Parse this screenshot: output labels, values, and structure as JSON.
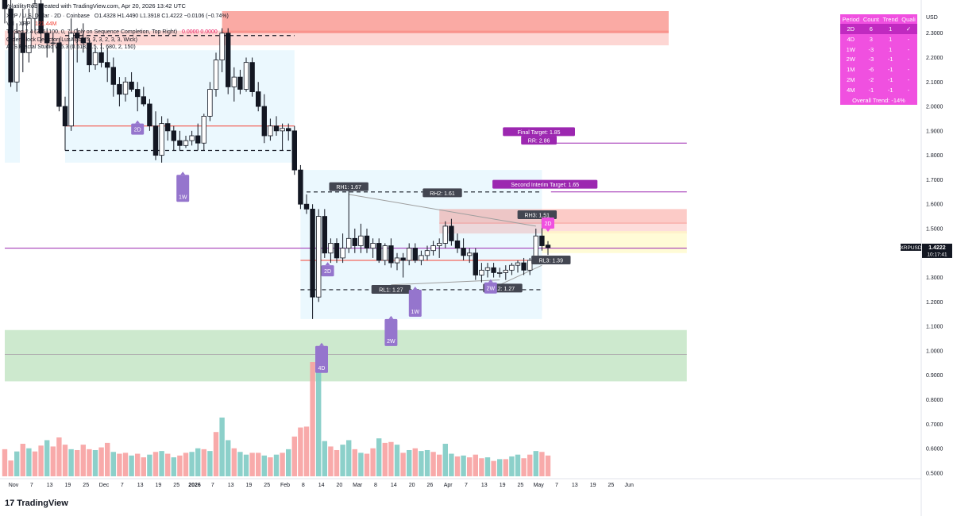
{
  "header": {
    "credit": "VolatilityRob created with TradingView.com, Apr 20, 2026 13:42 UTC"
  },
  "legend": {
    "symbol_line": "XRP / U.S. Dollar · 2D · Coinbase",
    "ohlc": "O1.4328  H1.4490  L1.3918  C1.4222  −0.0106 (−0.74%)",
    "vol_label": "Vol · XRP",
    "vol_value": "121.44M",
    "td_label": "TDSeq 2.4 (2, 6, 100, 0, 7, Only on Sequence Completion, Top Right)",
    "td_values": "0.0000  0.0000",
    "ob_label": "Order Block Detector [LuxAlgo] (5, 3, 3, 2, 3, 3, Wick)",
    "aes_label": "AES Fractal Studio v15.3 (0.618, 0.5, 1, 680, 2, 150)"
  },
  "stats_table": {
    "headers": [
      "Period",
      "Count",
      "Trend",
      "Quali"
    ],
    "rows": [
      [
        "2D",
        "6",
        "1",
        "✓"
      ],
      [
        "4D",
        "3",
        "1",
        "-"
      ],
      [
        "1W",
        "-3",
        "1",
        "-"
      ],
      [
        "2W",
        "-3",
        "-1",
        "-"
      ],
      [
        "1M",
        "-6",
        "-1",
        "-"
      ],
      [
        "2M",
        "-2",
        "-1",
        "-"
      ],
      [
        "4M",
        "-1",
        "-1",
        "-"
      ]
    ],
    "overall": "Overall Trend: -14%"
  },
  "branding": {
    "logo_text": "TradingView",
    "logo_mark": "17"
  },
  "colors": {
    "up": "#ffffff",
    "down": "#131722",
    "vol_up": "#80cbc4",
    "vol_down": "#f7a1a1",
    "resistance": "#f44336",
    "support": "#4caf50",
    "label_purple": "#9c27b0",
    "tag_purple": "#9575cd",
    "pink": "#f050e0"
  },
  "chart_data": {
    "type": "candlestick",
    "symbol": "XRPUSD",
    "price_axis": {
      "label": "USD",
      "min": 0.48,
      "max": 2.39,
      "ticks": [
        2.3,
        2.2,
        2.1,
        2.0,
        1.9,
        1.8,
        1.7,
        1.6,
        1.5,
        1.4,
        1.3,
        1.2,
        1.1,
        1.0,
        0.9,
        0.8,
        0.7,
        0.6,
        0.5
      ]
    },
    "time_axis": {
      "labels": [
        "Nov",
        "7",
        "13",
        "19",
        "25",
        "Dec",
        "7",
        "13",
        "19",
        "25",
        "2026",
        "7",
        "13",
        "19",
        "25",
        "Feb",
        "8",
        "14",
        "20",
        "Mar",
        "8",
        "14",
        "20",
        "26",
        "Apr",
        "7",
        "13",
        "19",
        "25",
        "May",
        "7",
        "13",
        "19",
        "25",
        "Jun"
      ],
      "slots": [
        0,
        3,
        6,
        9,
        12,
        15,
        18,
        21,
        24,
        27,
        30,
        33,
        36,
        39,
        42,
        45,
        48,
        51,
        54,
        57,
        60,
        63,
        66,
        69,
        72,
        75,
        78,
        81,
        84,
        87,
        90,
        93,
        96,
        99,
        102
      ]
    },
    "candles": [
      [
        2.45,
        2.52,
        2.34,
        2.4
      ],
      [
        2.4,
        2.45,
        2.08,
        2.1
      ],
      [
        2.1,
        2.34,
        2.06,
        2.3
      ],
      [
        2.3,
        2.4,
        2.14,
        2.22
      ],
      [
        2.22,
        2.4,
        2.18,
        2.36
      ],
      [
        2.36,
        2.44,
        2.3,
        2.42
      ],
      [
        2.42,
        2.46,
        2.26,
        2.3
      ],
      [
        2.3,
        2.32,
        2.2,
        2.26
      ],
      [
        2.26,
        2.3,
        2.22,
        2.26
      ],
      [
        2.26,
        2.28,
        1.98,
        2.0
      ],
      [
        2.0,
        2.04,
        1.82,
        1.92
      ],
      [
        1.92,
        2.36,
        1.9,
        2.3
      ],
      [
        2.3,
        2.32,
        2.18,
        2.28
      ],
      [
        2.28,
        2.34,
        2.22,
        2.26
      ],
      [
        2.26,
        2.28,
        2.14,
        2.17
      ],
      [
        2.17,
        2.24,
        2.15,
        2.22
      ],
      [
        2.22,
        2.26,
        2.16,
        2.18
      ],
      [
        2.18,
        2.24,
        2.1,
        2.16
      ],
      [
        2.16,
        2.2,
        2.04,
        2.09
      ],
      [
        2.09,
        2.12,
        2.0,
        2.05
      ],
      [
        2.05,
        2.12,
        2.02,
        2.1
      ],
      [
        2.1,
        2.14,
        2.06,
        2.07
      ],
      [
        2.07,
        2.1,
        1.98,
        2.04
      ],
      [
        2.04,
        2.08,
        2.0,
        2.01
      ],
      [
        2.01,
        2.03,
        1.9,
        1.92
      ],
      [
        1.92,
        1.98,
        1.78,
        1.8
      ],
      [
        1.8,
        1.96,
        1.77,
        1.93
      ],
      [
        1.93,
        1.95,
        1.86,
        1.9
      ],
      [
        1.9,
        1.92,
        1.82,
        1.86
      ],
      [
        1.86,
        1.9,
        1.82,
        1.84
      ],
      [
        1.84,
        1.88,
        1.83,
        1.86
      ],
      [
        1.86,
        1.9,
        1.84,
        1.88
      ],
      [
        1.88,
        1.93,
        1.82,
        1.85
      ],
      [
        1.85,
        1.97,
        1.82,
        1.96
      ],
      [
        1.96,
        2.1,
        1.94,
        2.07
      ],
      [
        2.07,
        2.22,
        2.04,
        2.19
      ],
      [
        2.19,
        2.32,
        2.14,
        2.3
      ],
      [
        2.3,
        2.32,
        2.05,
        2.08
      ],
      [
        2.08,
        2.16,
        2.02,
        2.12
      ],
      [
        2.12,
        2.15,
        2.05,
        2.07
      ],
      [
        2.07,
        2.2,
        2.06,
        2.18
      ],
      [
        2.18,
        2.2,
        2.04,
        2.06
      ],
      [
        2.06,
        2.1,
        1.98,
        2.0
      ],
      [
        2.0,
        2.05,
        1.85,
        1.88
      ],
      [
        1.88,
        1.95,
        1.86,
        1.92
      ],
      [
        1.92,
        1.96,
        1.88,
        1.9
      ],
      [
        1.9,
        1.93,
        1.82,
        1.91
      ],
      [
        1.91,
        1.93,
        1.86,
        1.9
      ],
      [
        1.9,
        1.92,
        1.72,
        1.74
      ],
      [
        1.74,
        1.76,
        1.58,
        1.6
      ],
      [
        1.6,
        1.64,
        1.56,
        1.58
      ],
      [
        1.58,
        1.6,
        1.13,
        1.22
      ],
      [
        1.22,
        1.58,
        1.2,
        1.55
      ],
      [
        1.55,
        1.58,
        1.38,
        1.4
      ],
      [
        1.4,
        1.46,
        1.36,
        1.44
      ],
      [
        1.44,
        1.46,
        1.36,
        1.38
      ],
      [
        1.38,
        1.48,
        1.36,
        1.42
      ],
      [
        1.42,
        1.67,
        1.4,
        1.46
      ],
      [
        1.46,
        1.5,
        1.4,
        1.43
      ],
      [
        1.43,
        1.52,
        1.4,
        1.47
      ],
      [
        1.47,
        1.5,
        1.4,
        1.42
      ],
      [
        1.42,
        1.46,
        1.38,
        1.44
      ],
      [
        1.44,
        1.46,
        1.36,
        1.37
      ],
      [
        1.37,
        1.44,
        1.35,
        1.43
      ],
      [
        1.43,
        1.46,
        1.34,
        1.36
      ],
      [
        1.36,
        1.4,
        1.33,
        1.38
      ],
      [
        1.38,
        1.4,
        1.3,
        1.37
      ],
      [
        1.37,
        1.44,
        1.35,
        1.42
      ],
      [
        1.42,
        1.44,
        1.36,
        1.37
      ],
      [
        1.37,
        1.41,
        1.35,
        1.39
      ],
      [
        1.39,
        1.43,
        1.37,
        1.41
      ],
      [
        1.41,
        1.45,
        1.39,
        1.43
      ],
      [
        1.43,
        1.46,
        1.38,
        1.44
      ],
      [
        1.44,
        1.53,
        1.42,
        1.51
      ],
      [
        1.51,
        1.54,
        1.43,
        1.45
      ],
      [
        1.45,
        1.48,
        1.4,
        1.42
      ],
      [
        1.42,
        1.46,
        1.37,
        1.39
      ],
      [
        1.39,
        1.42,
        1.36,
        1.4
      ],
      [
        1.4,
        1.42,
        1.29,
        1.31
      ],
      [
        1.31,
        1.36,
        1.28,
        1.33
      ],
      [
        1.33,
        1.36,
        1.3,
        1.34
      ],
      [
        1.34,
        1.36,
        1.3,
        1.32
      ],
      [
        1.32,
        1.34,
        1.3,
        1.32
      ],
      [
        1.32,
        1.35,
        1.29,
        1.33
      ],
      [
        1.33,
        1.36,
        1.31,
        1.35
      ],
      [
        1.35,
        1.37,
        1.32,
        1.36
      ],
      [
        1.36,
        1.38,
        1.31,
        1.33
      ],
      [
        1.33,
        1.38,
        1.31,
        1.37
      ],
      [
        1.37,
        1.5,
        1.36,
        1.47
      ],
      [
        1.47,
        1.55,
        1.41,
        1.43
      ],
      [
        1.4328,
        1.449,
        1.3918,
        1.4222
      ]
    ],
    "volume": [
      [
        "d",
        0.6
      ],
      [
        "d",
        0.35
      ],
      [
        "u",
        0.55
      ],
      [
        "d",
        0.72
      ],
      [
        "u",
        0.62
      ],
      [
        "d",
        0.55
      ],
      [
        "d",
        0.68
      ],
      [
        "u",
        0.8
      ],
      [
        "d",
        0.66
      ],
      [
        "d",
        0.86
      ],
      [
        "d",
        0.7
      ],
      [
        "u",
        0.6
      ],
      [
        "d",
        0.58
      ],
      [
        "d",
        0.7
      ],
      [
        "d",
        0.6
      ],
      [
        "u",
        0.58
      ],
      [
        "d",
        0.64
      ],
      [
        "d",
        0.74
      ],
      [
        "u",
        0.54
      ],
      [
        "d",
        0.5
      ],
      [
        "d",
        0.52
      ],
      [
        "u",
        0.46
      ],
      [
        "d",
        0.5
      ],
      [
        "d",
        0.42
      ],
      [
        "u",
        0.48
      ],
      [
        "d",
        0.54
      ],
      [
        "u",
        0.56
      ],
      [
        "d",
        0.5
      ],
      [
        "u",
        0.42
      ],
      [
        "d",
        0.46
      ],
      [
        "d",
        0.52
      ],
      [
        "u",
        0.54
      ],
      [
        "u",
        0.62
      ],
      [
        "d",
        0.6
      ],
      [
        "u",
        0.56
      ],
      [
        "d",
        0.98
      ],
      [
        "u",
        1.3
      ],
      [
        "u",
        0.8
      ],
      [
        "d",
        0.62
      ],
      [
        "u",
        0.54
      ],
      [
        "u",
        0.48
      ],
      [
        "d",
        0.52
      ],
      [
        "d",
        0.52
      ],
      [
        "u",
        0.46
      ],
      [
        "d",
        0.42
      ],
      [
        "u",
        0.48
      ],
      [
        "d",
        0.52
      ],
      [
        "u",
        0.6
      ],
      [
        "d",
        0.88
      ],
      [
        "d",
        1.08
      ],
      [
        "d",
        1.1
      ],
      [
        "d",
        2.53
      ],
      [
        "u",
        2.47
      ],
      [
        "u",
        0.78
      ],
      [
        "d",
        0.66
      ],
      [
        "d",
        0.58
      ],
      [
        "u",
        0.7
      ],
      [
        "u",
        0.8
      ],
      [
        "d",
        0.6
      ],
      [
        "u",
        0.52
      ],
      [
        "d",
        0.5
      ],
      [
        "d",
        0.62
      ],
      [
        "u",
        0.84
      ],
      [
        "d",
        0.74
      ],
      [
        "d",
        0.76
      ],
      [
        "u",
        0.7
      ],
      [
        "d",
        0.52
      ],
      [
        "u",
        0.58
      ],
      [
        "d",
        0.62
      ],
      [
        "u",
        0.56
      ],
      [
        "u",
        0.58
      ],
      [
        "d",
        0.54
      ],
      [
        "d",
        0.48
      ],
      [
        "u",
        0.72
      ],
      [
        "u",
        0.5
      ],
      [
        "d",
        0.44
      ],
      [
        "u",
        0.46
      ],
      [
        "d",
        0.42
      ],
      [
        "d",
        0.48
      ],
      [
        "d",
        0.4
      ],
      [
        "u",
        0.42
      ],
      [
        "d",
        0.34
      ],
      [
        "u",
        0.38
      ],
      [
        "d",
        0.38
      ],
      [
        "u",
        0.44
      ],
      [
        "u",
        0.48
      ],
      [
        "d",
        0.4
      ],
      [
        "d",
        0.48
      ],
      [
        "u",
        0.56
      ],
      [
        "d",
        0.54
      ],
      [
        "d",
        0.46
      ]
    ],
    "volume_scale_max": 2.53,
    "zones": [
      {
        "kind": "resistance",
        "color": "#f44336",
        "opacity": 0.45,
        "x0": 36,
        "x1": 110,
        "ymin": 2.3,
        "ymax": 2.39
      },
      {
        "kind": "resistance",
        "color": "#f44336",
        "opacity": 0.22,
        "x0": 0,
        "x1": 110,
        "ymin": 2.25,
        "ymax": 2.31
      },
      {
        "kind": "range",
        "color": "#e1f5fe",
        "opacity": 0.65,
        "x0": 0,
        "x1": 2.5,
        "ymin": 1.77,
        "ymax": 2.23
      },
      {
        "kind": "range",
        "color": "#e1f5fe",
        "opacity": 0.65,
        "x0": 10,
        "x1": 48,
        "ymin": 1.77,
        "ymax": 2.23
      },
      {
        "kind": "range",
        "color": "#e1f5fe",
        "opacity": 0.65,
        "x0": 49,
        "x1": 89,
        "ymin": 1.13,
        "ymax": 1.74
      },
      {
        "kind": "resistance",
        "color": "#f44336",
        "opacity": 0.28,
        "x0": 72,
        "x1": 113,
        "ymin": 1.52,
        "ymax": 1.58
      },
      {
        "kind": "resistance",
        "color": "#f44336",
        "opacity": 0.18,
        "x0": 72,
        "x1": 113,
        "ymin": 1.48,
        "ymax": 1.525
      },
      {
        "kind": "fvg",
        "color": "#fff9c4",
        "opacity": 0.7,
        "x0": 89,
        "x1": 113,
        "ymin": 1.4,
        "ymax": 1.49
      },
      {
        "kind": "support",
        "color": "#4caf50",
        "opacity": 0.28,
        "x0": 0,
        "x1": 113,
        "ymin": 0.875,
        "ymax": 1.085
      }
    ],
    "lines": [
      {
        "kind": "dashed",
        "color": "#131722",
        "y": 2.29,
        "x0": 10,
        "x1": 48
      },
      {
        "kind": "dashed",
        "color": "#131722",
        "y": 1.82,
        "x0": 10,
        "x1": 48
      },
      {
        "kind": "dashed",
        "color": "#131722",
        "y": 1.65,
        "x0": 50,
        "x1": 89
      },
      {
        "kind": "dashed",
        "color": "#131722",
        "y": 1.25,
        "x0": 49,
        "x1": 89
      },
      {
        "kind": "solid",
        "color": "#f44336",
        "y": 1.92,
        "x0": 10,
        "x1": 48
      },
      {
        "kind": "solid",
        "color": "#f44336",
        "y": 1.37,
        "x0": 49,
        "x1": 89
      },
      {
        "kind": "solid",
        "color": "#9c27b0",
        "y": 1.85,
        "x0": 90.5,
        "x1": 113
      },
      {
        "kind": "solid",
        "color": "#9c27b0",
        "y": 1.65,
        "x0": 90.5,
        "x1": 113
      },
      {
        "kind": "solid",
        "color": "#9c27b0",
        "y": 1.42,
        "x0": 0,
        "x1": 113
      },
      {
        "kind": "solid",
        "color": "#b0b0b0",
        "y": 0.985,
        "x0": 0,
        "x1": 113
      }
    ],
    "trendlines": [
      {
        "color": "#9e9e9e",
        "from": [
          57,
          1.64
        ],
        "to": [
          88,
          1.51
        ]
      },
      {
        "color": "#9e9e9e",
        "from": [
          64,
          1.27
        ],
        "to": [
          82,
          1.29
        ]
      },
      {
        "color": "#9e9e9e",
        "from": [
          82,
          1.27
        ],
        "to": [
          89,
          1.35
        ]
      }
    ],
    "labels": [
      {
        "text": "RH1: 1.67",
        "bg": "#434651",
        "fg": "#ffffff",
        "x": 57,
        "y": 1.67
      },
      {
        "text": "RH2: 1.61",
        "bg": "#434651",
        "fg": "#ffffff",
        "x": 72.5,
        "y": 1.645
      },
      {
        "text": "RH3: 1.51",
        "bg": "#434651",
        "fg": "#ffffff",
        "x": 88.2,
        "y": 1.555
      },
      {
        "text": "RL3: 1.39",
        "bg": "#434651",
        "fg": "#ffffff",
        "x": 90.5,
        "y": 1.37
      },
      {
        "text": "RL1: 1.27",
        "bg": "#434651",
        "fg": "#ffffff",
        "x": 64,
        "y": 1.25
      },
      {
        "text": "RL2: 1.27",
        "bg": "#434651",
        "fg": "#ffffff",
        "x": 82.5,
        "y": 1.255
      },
      {
        "text": "Second Interim Target: 1.65",
        "bg": "#9c27b0",
        "fg": "#ffffff",
        "x": 89.5,
        "y": 1.68
      },
      {
        "text": "Final Target: 1.85",
        "bg": "#9c27b0",
        "fg": "#ffffff",
        "x": 88.5,
        "y": 1.895
      },
      {
        "text": "RR: 2.86",
        "bg": "#9c27b0",
        "fg": "#ffffff",
        "x": 88.5,
        "y": 1.86
      }
    ],
    "tags": [
      {
        "text": "2D",
        "bg": "#9575cd",
        "x": 22,
        "y": 1.93,
        "dir": "up"
      },
      {
        "text": "1W",
        "bg": "#9575cd",
        "x": 29.5,
        "y": 1.72,
        "dir": "up",
        "tall": true
      },
      {
        "text": "2D",
        "bg": "#9575cd",
        "x": 53.5,
        "y": 1.35,
        "dir": "up"
      },
      {
        "text": "1W",
        "bg": "#9575cd",
        "x": 68,
        "y": 1.25,
        "dir": "up",
        "tall": true
      },
      {
        "text": "2W",
        "bg": "#9575cd",
        "x": 64,
        "y": 1.13,
        "dir": "up",
        "tall": true
      },
      {
        "text": "4D",
        "bg": "#9575cd",
        "x": 52.5,
        "y": 1.02,
        "dir": "up",
        "tall": true
      },
      {
        "text": "2W",
        "bg": "#9575cd",
        "x": 80.5,
        "y": 1.28,
        "dir": "up"
      },
      {
        "text": "2D",
        "bg": "#f050e0",
        "x": 90,
        "y": 1.5,
        "dir": "down"
      }
    ],
    "price_badges": [
      {
        "text": "XRPUSD",
        "bg": "#131722",
        "fg": "#ffffff"
      },
      {
        "text": "1.4222",
        "bg": "#131722",
        "fg": "#ffffff"
      },
      {
        "text": "10:17:41",
        "bg": "#131722",
        "fg": "#ffffff"
      }
    ],
    "last_price": 1.4222
  }
}
